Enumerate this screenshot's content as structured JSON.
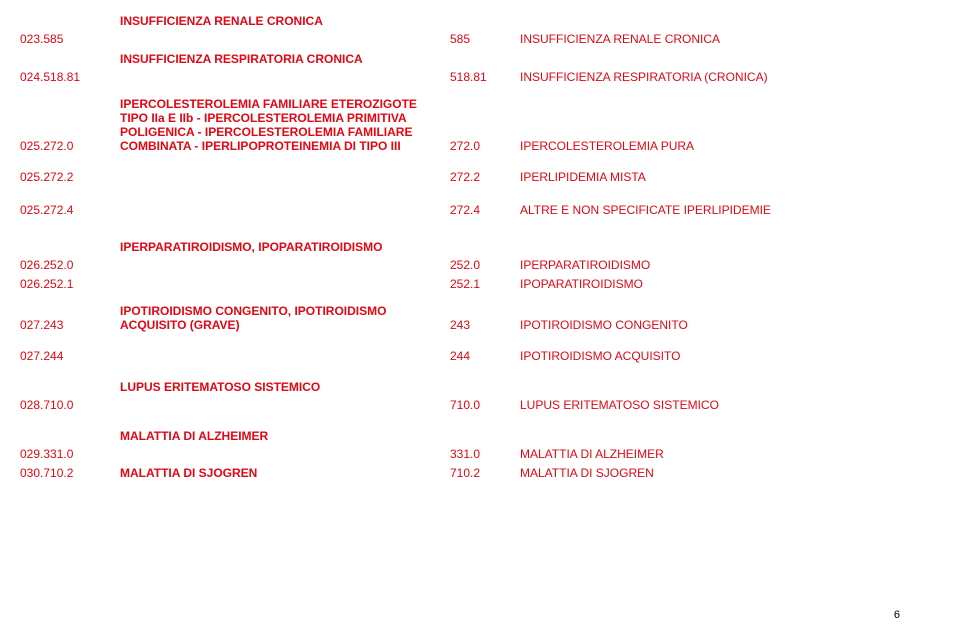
{
  "colors": {
    "text": "#e30613",
    "page_num": "#000000",
    "background": "#ffffff"
  },
  "font": {
    "family": "Arial",
    "size_body": 12,
    "size_pagenum": 11
  },
  "page_number": "6",
  "sections": {
    "s1": {
      "title": "INSUFFICIENZA RENALE CRONICA"
    },
    "s2": {
      "title": "INSUFFICIENZA RESPIRATORIA CRONICA"
    },
    "s3": {
      "title": "IPERPARATIROIDISMO, IPOPARATIROIDISMO"
    },
    "s4": {
      "title": "LUPUS ERITEMATOSO SISTEMICO"
    },
    "s5": {
      "title": "MALATTIA DI ALZHEIMER"
    }
  },
  "rows": {
    "r1": {
      "code": "023.585",
      "desc": "",
      "num": "585",
      "label": "INSUFFICIENZA RENALE CRONICA"
    },
    "r2": {
      "code": "024.518.81",
      "desc": "",
      "num": "518.81",
      "label": "INSUFFICIENZA RESPIRATORIA (CRONICA)"
    },
    "r3": {
      "code": "025.272.0",
      "desc": "IPERCOLESTEROLEMIA FAMILIARE ETEROZIGOTE TIPO IIa E IIb - IPERCOLESTEROLEMIA PRIMITIVA POLIGENICA - IPERCOLESTEROLEMIA FAMILIARE COMBINATA - IPERLIPOPROTEINEMIA DI TIPO III",
      "num": "272.0",
      "label": "IPERCOLESTEROLEMIA PURA"
    },
    "r4": {
      "code": "025.272.2",
      "desc": "",
      "num": "272.2",
      "label": "IPERLIPIDEMIA MISTA"
    },
    "r5": {
      "code": "025.272.4",
      "desc": "",
      "num": "272.4",
      "label": "ALTRE E NON SPECIFICATE IPERLIPIDEMIE"
    },
    "r6": {
      "code": "026.252.0",
      "desc": "",
      "num": "252.0",
      "label": "IPERPARATIROIDISMO"
    },
    "r7": {
      "code": "026.252.1",
      "desc": "",
      "num": "252.1",
      "label": "IPOPARATIROIDISMO"
    },
    "r8": {
      "code": "027.243",
      "desc": "IPOTIROIDISMO CONGENITO, IPOTIROIDISMO ACQUISITO (GRAVE)",
      "num": "243",
      "label": "IPOTIROIDISMO CONGENITO"
    },
    "r9": {
      "code": "027.244",
      "desc": "",
      "num": "244",
      "label": "IPOTIROIDISMO ACQUISITO"
    },
    "r10": {
      "code": "028.710.0",
      "desc": "",
      "num": "710.0",
      "label": "LUPUS ERITEMATOSO SISTEMICO"
    },
    "r11": {
      "code": "029.331.0",
      "desc": "",
      "num": "331.0",
      "label": "MALATTIA DI ALZHEIMER"
    },
    "r12": {
      "code": "030.710.2",
      "desc": "MALATTIA DI SJOGREN",
      "num": "710.2",
      "label": "MALATTIA DI SJOGREN"
    }
  }
}
